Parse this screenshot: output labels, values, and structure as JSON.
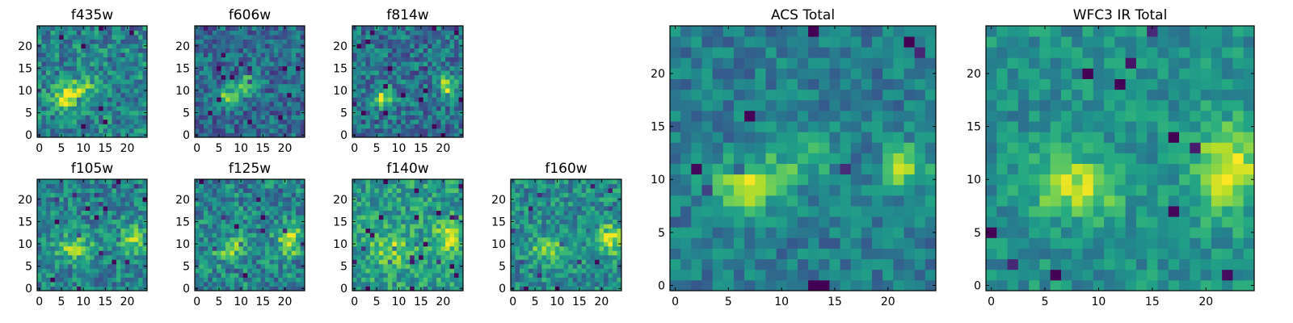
{
  "chart_data": [
    {
      "type": "heatmap",
      "title": "f435w",
      "grid_size": 25,
      "xticks": [
        0,
        5,
        10,
        15,
        20
      ],
      "yticks": [
        0,
        5,
        10,
        15,
        20
      ],
      "xlim": [
        0,
        24
      ],
      "ylim": [
        0,
        24
      ],
      "colormap": "viridis",
      "blobs": [
        {
          "x": 6.5,
          "y": 8.5,
          "amp": 0.55,
          "sx": 2.0,
          "sy": 1.6
        },
        {
          "x": 10,
          "y": 11,
          "amp": 0.25,
          "sx": 2.5,
          "sy": 1.5
        }
      ],
      "base": 0.45,
      "noise": 0.22,
      "seed": 11
    },
    {
      "type": "heatmap",
      "title": "f606w",
      "grid_size": 25,
      "xticks": [
        0,
        5,
        10,
        15,
        20
      ],
      "yticks": [
        0,
        5,
        10,
        15,
        20
      ],
      "xlim": [
        0,
        24
      ],
      "ylim": [
        0,
        24
      ],
      "colormap": "viridis",
      "blobs": [
        {
          "x": 7,
          "y": 8.5,
          "amp": 0.45,
          "sx": 2.0,
          "sy": 1.5
        },
        {
          "x": 11,
          "y": 11.5,
          "amp": 0.4,
          "sx": 2.2,
          "sy": 1.4
        }
      ],
      "base": 0.35,
      "noise": 0.2,
      "seed": 23
    },
    {
      "type": "heatmap",
      "title": "f814w",
      "grid_size": 25,
      "xticks": [
        0,
        5,
        10,
        15,
        20
      ],
      "yticks": [
        0,
        5,
        10,
        15,
        20
      ],
      "xlim": [
        0,
        24
      ],
      "ylim": [
        0,
        24
      ],
      "colormap": "viridis",
      "blobs": [
        {
          "x": 6.5,
          "y": 8.5,
          "amp": 0.5,
          "sx": 1.8,
          "sy": 1.5
        },
        {
          "x": 21,
          "y": 11,
          "amp": 0.5,
          "sx": 1.5,
          "sy": 1.5
        }
      ],
      "base": 0.38,
      "noise": 0.22,
      "seed": 37
    },
    {
      "type": "heatmap",
      "title": "f105w",
      "grid_size": 25,
      "xticks": [
        0,
        5,
        10,
        15,
        20
      ],
      "yticks": [
        0,
        5,
        10,
        15,
        20
      ],
      "xlim": [
        0,
        24
      ],
      "ylim": [
        0,
        24
      ],
      "colormap": "viridis",
      "blobs": [
        {
          "x": 8,
          "y": 9,
          "amp": 0.35,
          "sx": 3.0,
          "sy": 2.0
        },
        {
          "x": 21,
          "y": 11,
          "amp": 0.35,
          "sx": 2.0,
          "sy": 2.5
        }
      ],
      "base": 0.45,
      "noise": 0.2,
      "seed": 41
    },
    {
      "type": "heatmap",
      "title": "f125w",
      "grid_size": 25,
      "xticks": [
        0,
        5,
        10,
        15,
        20
      ],
      "yticks": [
        0,
        5,
        10,
        15,
        20
      ],
      "xlim": [
        0,
        24
      ],
      "ylim": [
        0,
        24
      ],
      "colormap": "viridis",
      "blobs": [
        {
          "x": 8,
          "y": 9,
          "amp": 0.3,
          "sx": 3.0,
          "sy": 2.0
        },
        {
          "x": 21,
          "y": 11,
          "amp": 0.45,
          "sx": 2.0,
          "sy": 2.5
        }
      ],
      "base": 0.45,
      "noise": 0.22,
      "seed": 53
    },
    {
      "type": "heatmap",
      "title": "f140w",
      "grid_size": 25,
      "xticks": [
        0,
        5,
        10,
        15,
        20
      ],
      "yticks": [
        0,
        5,
        10,
        15,
        20
      ],
      "xlim": [
        0,
        24
      ],
      "ylim": [
        0,
        24
      ],
      "colormap": "viridis",
      "blobs": [
        {
          "x": 8,
          "y": 9,
          "amp": 0.3,
          "sx": 3.0,
          "sy": 2.5
        },
        {
          "x": 21,
          "y": 11,
          "amp": 0.35,
          "sx": 2.0,
          "sy": 2.5
        }
      ],
      "base": 0.55,
      "noise": 0.2,
      "seed": 67
    },
    {
      "type": "heatmap",
      "title": "f160w",
      "grid_size": 25,
      "xticks": [
        0,
        5,
        10,
        15,
        20
      ],
      "yticks": [
        0,
        5,
        10,
        15,
        20
      ],
      "xlim": [
        0,
        24
      ],
      "ylim": [
        0,
        24
      ],
      "colormap": "viridis",
      "blobs": [
        {
          "x": 8,
          "y": 9,
          "amp": 0.3,
          "sx": 3.0,
          "sy": 2.0
        },
        {
          "x": 22,
          "y": 11,
          "amp": 0.4,
          "sx": 2.0,
          "sy": 2.5
        }
      ],
      "base": 0.48,
      "noise": 0.2,
      "seed": 79
    },
    {
      "type": "heatmap",
      "title": "ACS Total",
      "grid_size": 25,
      "xticks": [
        0,
        5,
        10,
        15,
        20
      ],
      "yticks": [
        0,
        5,
        10,
        15,
        20
      ],
      "xlim": [
        0,
        24
      ],
      "ylim": [
        0,
        24
      ],
      "colormap": "viridis",
      "blobs": [
        {
          "x": 7,
          "y": 9.5,
          "amp": 0.55,
          "sx": 2.2,
          "sy": 1.6
        },
        {
          "x": 12,
          "y": 12,
          "amp": 0.25,
          "sx": 2.0,
          "sy": 1.5
        },
        {
          "x": 21.5,
          "y": 11,
          "amp": 0.4,
          "sx": 1.6,
          "sy": 1.6
        }
      ],
      "base": 0.42,
      "noise": 0.15,
      "seed": 97
    },
    {
      "type": "heatmap",
      "title": "WFC3 IR Total",
      "grid_size": 25,
      "xticks": [
        0,
        5,
        10,
        15,
        20
      ],
      "yticks": [
        0,
        5,
        10,
        15,
        20
      ],
      "xlim": [
        0,
        24
      ],
      "ylim": [
        0,
        24
      ],
      "colormap": "viridis",
      "blobs": [
        {
          "x": 8,
          "y": 9.5,
          "amp": 0.4,
          "sx": 3.0,
          "sy": 2.0
        },
        {
          "x": 22,
          "y": 11,
          "amp": 0.5,
          "sx": 2.0,
          "sy": 2.8
        }
      ],
      "base": 0.5,
      "noise": 0.14,
      "seed": 113
    }
  ]
}
